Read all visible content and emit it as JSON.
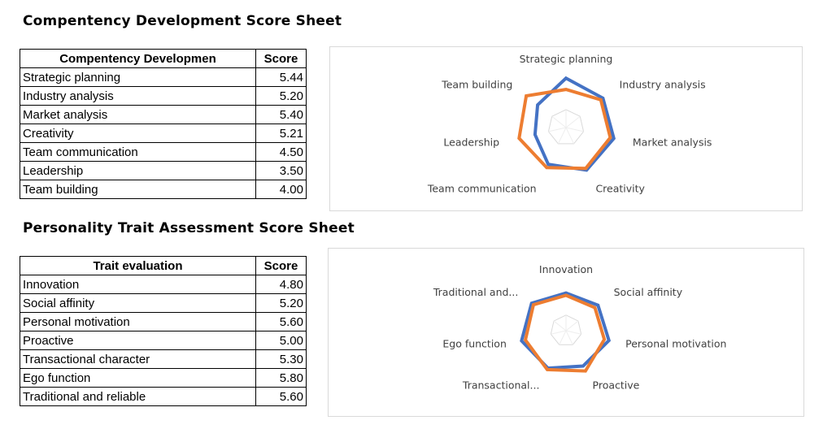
{
  "competency": {
    "title": "Compentency Development Score Sheet",
    "header_name": "Compentency Developmen",
    "header_score": "Score",
    "rows": [
      {
        "name": "Strategic planning",
        "score": "5.44"
      },
      {
        "name": "Industry analysis",
        "score": "5.20"
      },
      {
        "name": "Market analysis",
        "score": "5.40"
      },
      {
        "name": "Creativity",
        "score": "5.21"
      },
      {
        "name": "Team communication",
        "score": "4.50"
      },
      {
        "name": "Leadership",
        "score": "3.50"
      },
      {
        "name": "Team building",
        "score": "4.00"
      }
    ]
  },
  "personality": {
    "title": "Personality Trait Assessment Score Sheet",
    "header_name": "Trait evaluation",
    "header_score": "Score",
    "rows": [
      {
        "name": "Innovation",
        "score": "4.80"
      },
      {
        "name": "Social affinity",
        "score": "5.20"
      },
      {
        "name": "Personal motivation",
        "score": "5.60"
      },
      {
        "name": "Proactive",
        "score": "5.00"
      },
      {
        "name": "Transactional character",
        "score": "5.30"
      },
      {
        "name": "Ego function",
        "score": "5.80"
      },
      {
        "name": "Traditional and reliable",
        "score": "5.60"
      }
    ]
  },
  "chart_data": [
    {
      "type": "radar",
      "categories": [
        "Strategic planning",
        "Industry analysis",
        "Market analysis",
        "Creativity",
        "Team communication",
        "Leadership",
        "Team building"
      ],
      "series": [
        {
          "values": [
            5.44,
            5.2,
            5.4,
            5.21,
            4.5,
            3.5,
            4.0
          ],
          "color": "#4472C4"
        },
        {
          "values": [
            4.2,
            4.9,
            5.0,
            5.0,
            4.9,
            5.3,
            5.6
          ],
          "color": "#ED7D31"
        }
      ],
      "rlim": [
        0,
        6
      ],
      "grid": true,
      "legend": "none"
    },
    {
      "type": "radar",
      "categories": [
        "Innovation",
        "Social affinity",
        "Personal motivation",
        "Proactive",
        "Transactional...",
        "Ego function",
        "Traditional and..."
      ],
      "series": [
        {
          "values": [
            4.8,
            5.2,
            5.6,
            5.0,
            5.3,
            5.8,
            5.6
          ],
          "color": "#4472C4"
        },
        {
          "values": [
            4.5,
            4.7,
            5.0,
            5.7,
            5.5,
            5.3,
            5.3
          ],
          "color": "#ED7D31"
        }
      ],
      "rlim": [
        0,
        6
      ],
      "grid": true,
      "legend": "none"
    }
  ]
}
